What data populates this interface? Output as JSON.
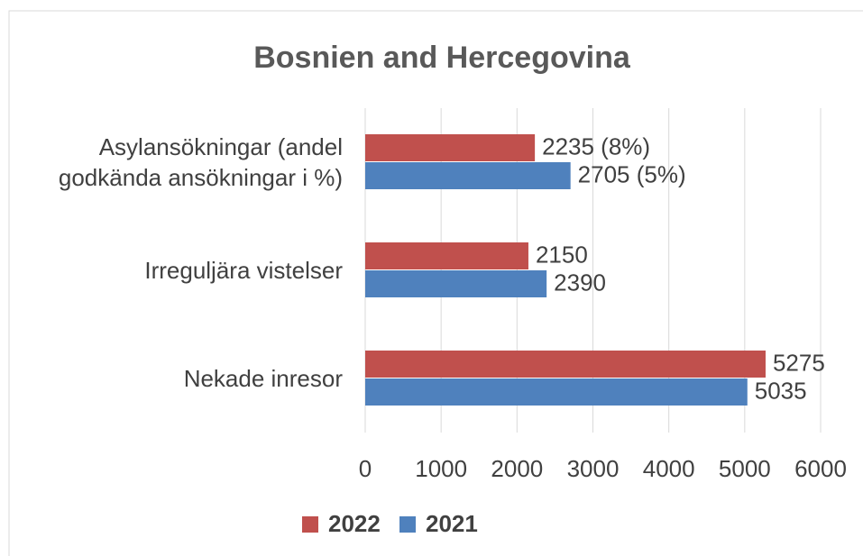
{
  "chart_data": {
    "type": "bar",
    "orientation": "horizontal",
    "title": "Bosnien and Hercegovina",
    "categories": [
      "Asylansökningar (andel godkända ansökningar i %)",
      "Irreguljära vistelser",
      "Nekade inresor"
    ],
    "series": [
      {
        "name": "2022",
        "color": "#c0504d",
        "values": [
          2235,
          2150,
          5275
        ],
        "value_labels": [
          "2235 (8%)",
          "2150",
          "5275"
        ]
      },
      {
        "name": "2021",
        "color": "#4f81bd",
        "values": [
          2705,
          2390,
          5035
        ],
        "value_labels": [
          "2705 (5%)",
          "2390",
          "5035"
        ]
      }
    ],
    "xlim": [
      0,
      6000
    ],
    "xticks": [
      0,
      1000,
      2000,
      3000,
      4000,
      5000,
      6000
    ],
    "grid": true,
    "legend": "bottom"
  }
}
